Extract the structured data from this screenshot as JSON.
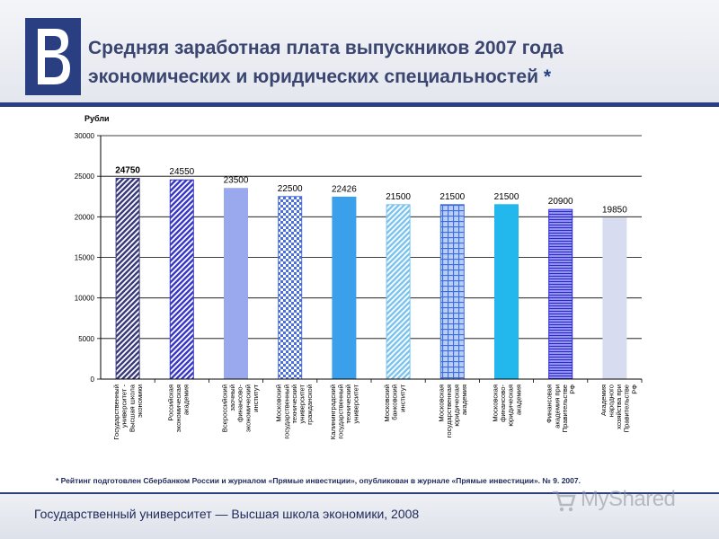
{
  "header": {
    "title_line1": "Средняя заработная плата выпускников 2007 года",
    "title_line2": "экономических и юридических специальностей",
    "title_star": "*"
  },
  "chart_data": {
    "type": "bar",
    "ylabel": "Рубли",
    "ylim": [
      0,
      30000
    ],
    "yticks": [
      0,
      5000,
      10000,
      15000,
      20000,
      25000,
      30000
    ],
    "grid": true,
    "categories": [
      [
        "Государственный",
        "университет -",
        "Высшая школа",
        "экономики"
      ],
      [
        "Российская",
        "экономическая",
        "академия"
      ],
      [
        "Всероссийский",
        "заочный",
        "финансово-",
        "экономический",
        "институт"
      ],
      [
        "Московский",
        "государственный",
        "технический",
        "университет",
        "гражданской"
      ],
      [
        "Калининградский",
        "государственный",
        "технический",
        "университет"
      ],
      [
        "Московский",
        "банковский",
        "институт"
      ],
      [
        "Московская",
        "государственная",
        "юридическая",
        "академия"
      ],
      [
        "Московская",
        "финансово-",
        "юридическая",
        "академия"
      ],
      [
        "Финансовая",
        "академия при",
        "Правительстве",
        "РФ"
      ],
      [
        "Академия",
        "народного",
        "хозяйства при",
        "Правительстве",
        "РФ"
      ]
    ],
    "values": [
      24750,
      24550,
      23500,
      22500,
      22426,
      21500,
      21500,
      21500,
      20900,
      19850
    ],
    "data_labels": [
      "24750",
      "24550",
      "23500",
      "22500",
      "22426",
      "21500",
      "21500",
      "21500",
      "20900",
      "19850"
    ],
    "bar_colors": [
      "#3a3a7a",
      "#3838c8",
      "#9aa8ee",
      "#4a6ee0",
      "#3aa0ec",
      "#7cc4f0",
      "#3a6ee0",
      "#22b8ee",
      "#2828d8",
      "#d8dcf0"
    ],
    "bar_patterns": [
      "diag",
      "diag",
      "solid",
      "check",
      "solid",
      "diag",
      "grid",
      "solid",
      "hstripe",
      "solid"
    ]
  },
  "footnote": "* Рейтинг подготовлен Сбербанком России и журналом «Прямые инвестиции», опубликован в журнале «Прямые инвестиции». № 9. 2007.",
  "footer": {
    "text": "Государственный университет — Высшая школа экономики, 2008"
  },
  "watermark": {
    "text": "MyShared"
  }
}
